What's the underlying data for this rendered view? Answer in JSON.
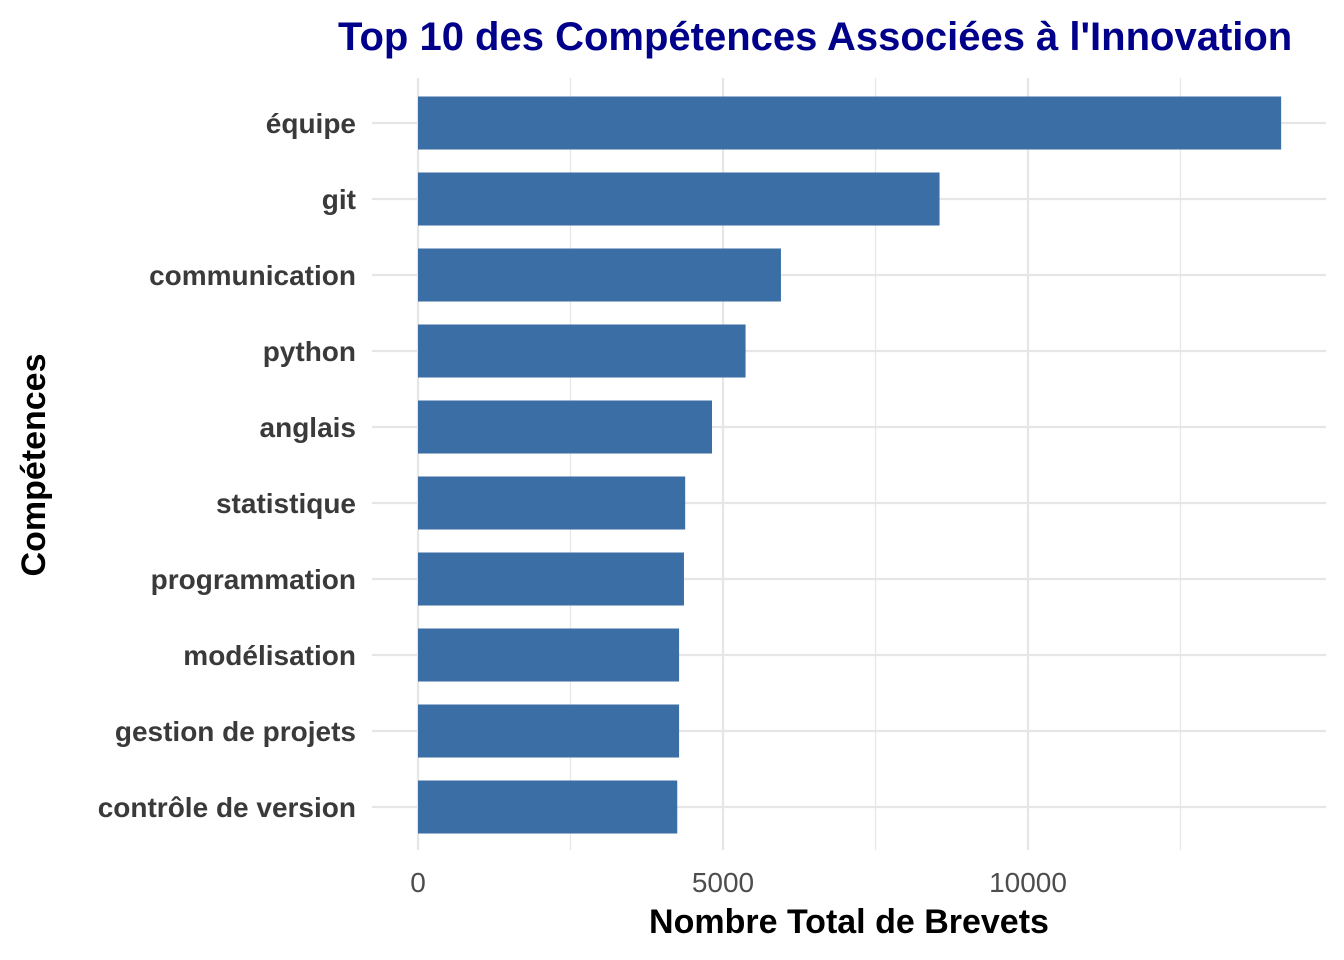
{
  "colors": {
    "bar": "#3a6ea5",
    "title": "#00008b",
    "grid": "#e6e6e6",
    "background": "#ffffff"
  },
  "chart_data": {
    "type": "bar",
    "orientation": "horizontal",
    "title": "Top 10 des Compétences Associées à l'Innovation",
    "xlabel": "Nombre Total de Brevets",
    "ylabel": "Compétences",
    "categories": [
      "équipe",
      "git",
      "communication",
      "python",
      "anglais",
      "statistique",
      "programmation",
      "modélisation",
      "gestion de projets",
      "contrôle de version"
    ],
    "values": [
      14150,
      8550,
      5950,
      5370,
      4820,
      4380,
      4360,
      4280,
      4280,
      4250
    ],
    "xlim": [
      0,
      14900
    ],
    "xticks": [
      0,
      5000,
      10000
    ],
    "xtick_labels": [
      "0",
      "5000",
      "10000"
    ],
    "grid": true,
    "legend": "none"
  }
}
